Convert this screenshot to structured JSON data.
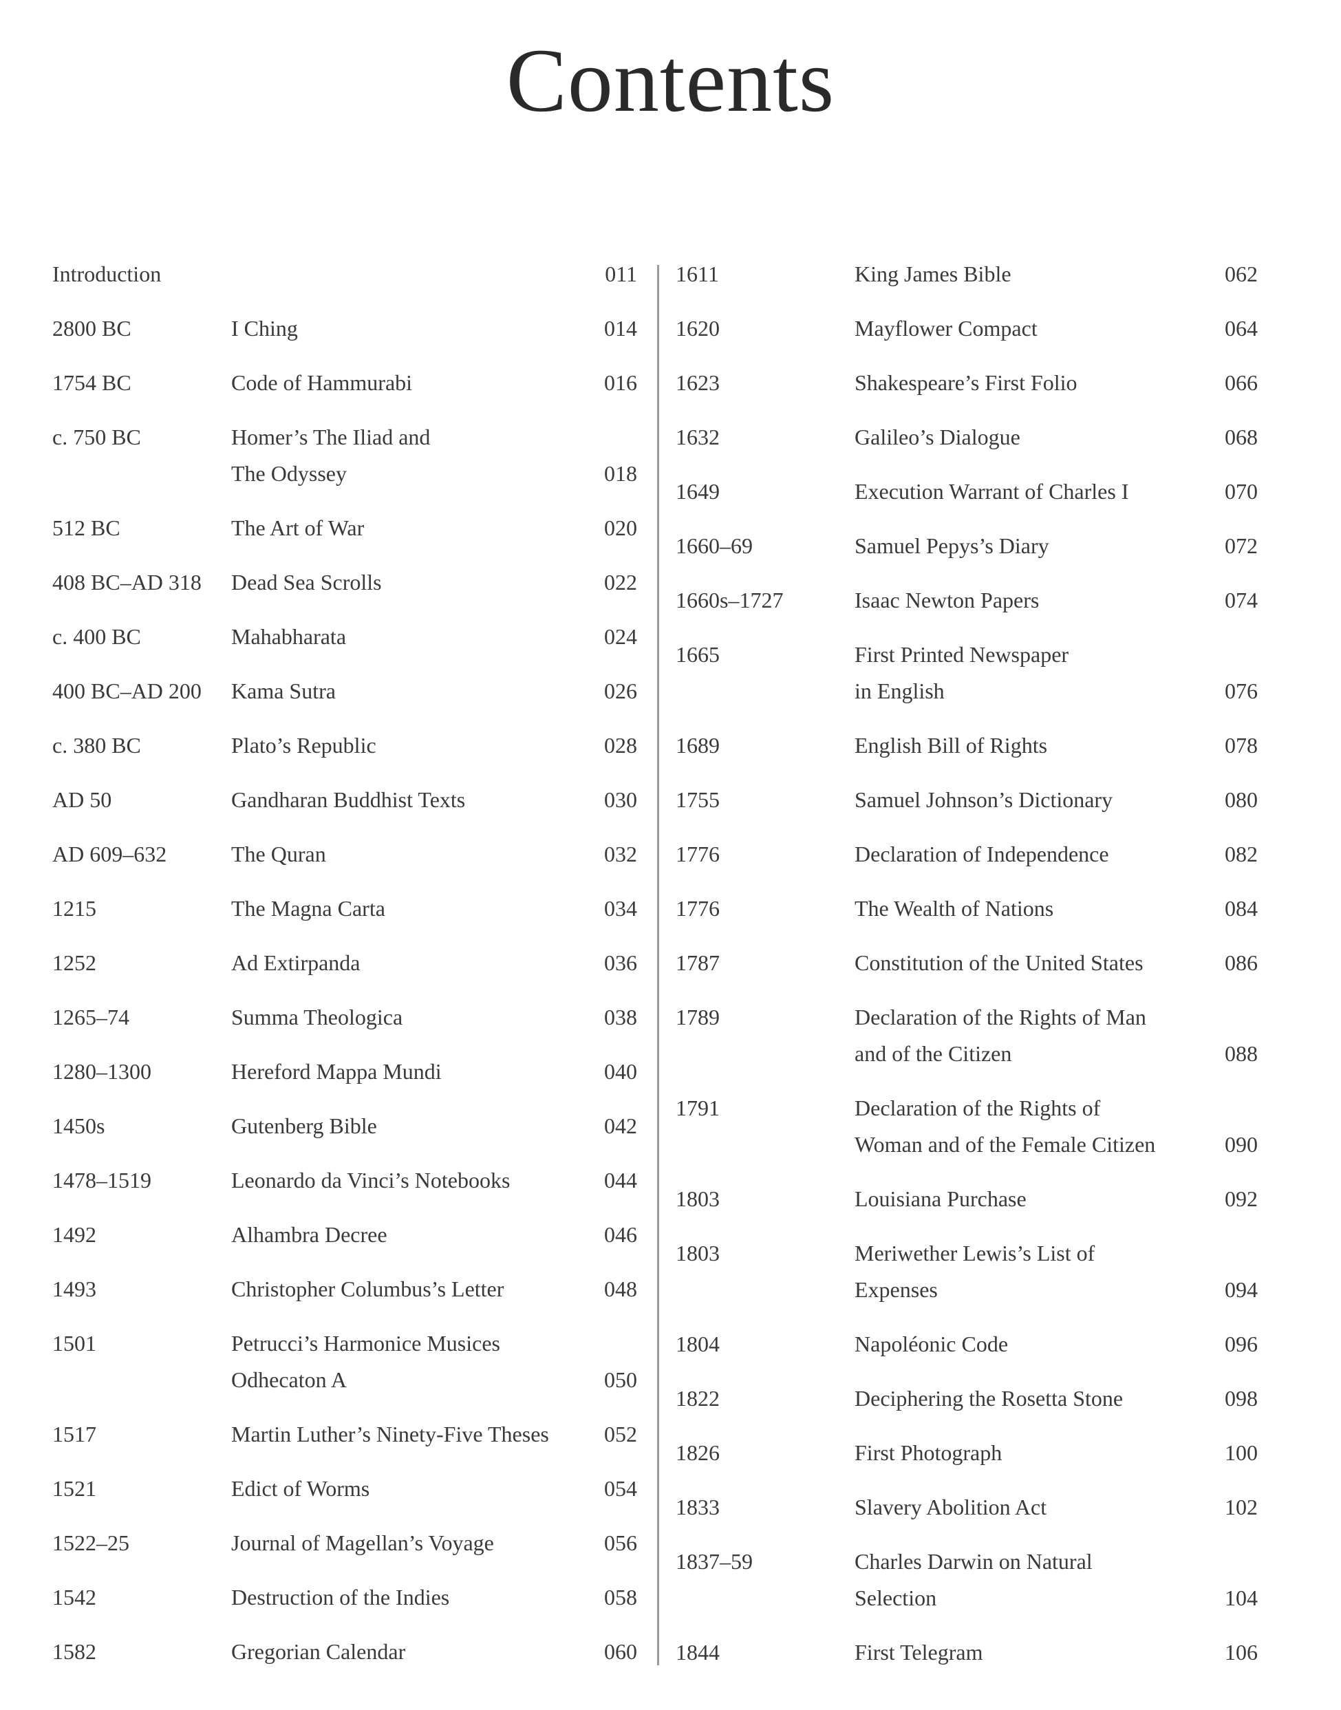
{
  "title": "Contents",
  "left_entries": [
    {
      "date": "Introduction",
      "title": "",
      "page": "011"
    },
    {
      "date": "2800 BC",
      "title": "I Ching",
      "page": "014"
    },
    {
      "date": "1754 BC",
      "title": "Code of Hammurabi",
      "page": "016"
    },
    {
      "date": "c. 750 BC",
      "title": "Homer’s The Iliad and The Odyssey",
      "page": "018",
      "lines": [
        "Homer’s The Iliad and",
        "The Odyssey"
      ]
    },
    {
      "date": "512 BC",
      "title": "The Art of War",
      "page": "020"
    },
    {
      "date": "408 BC–AD 318",
      "title": "Dead Sea Scrolls",
      "page": "022"
    },
    {
      "date": "c. 400 BC",
      "title": "Mahabharata",
      "page": "024"
    },
    {
      "date": "400 BC–AD 200",
      "title": "Kama Sutra",
      "page": "026"
    },
    {
      "date": "c. 380 BC",
      "title": "Plato’s Republic",
      "page": "028"
    },
    {
      "date": "AD 50",
      "title": "Gandharan Buddhist Texts",
      "page": "030"
    },
    {
      "date": "AD 609–632",
      "title": "The Quran",
      "page": "032"
    },
    {
      "date": "1215",
      "title": "The Magna Carta",
      "page": "034"
    },
    {
      "date": "1252",
      "title": "Ad Extirpanda",
      "page": "036"
    },
    {
      "date": "1265–74",
      "title": "Summa Theologica",
      "page": "038"
    },
    {
      "date": "1280–1300",
      "title": "Hereford Mappa Mundi",
      "page": "040"
    },
    {
      "date": "1450s",
      "title": "Gutenberg Bible",
      "page": "042"
    },
    {
      "date": "1478–1519",
      "title": "Leonardo da Vinci’s Notebooks",
      "page": "044"
    },
    {
      "date": "1492",
      "title": "Alhambra Decree",
      "page": "046"
    },
    {
      "date": "1493",
      "title": "Christopher Columbus’s Letter",
      "page": "048"
    },
    {
      "date": "1501",
      "title": "Petrucci’s Harmonice Musices Odhecaton A",
      "page": "050",
      "lines": [
        "Petrucci’s Harmonice Musices",
        "Odhecaton A"
      ]
    },
    {
      "date": "1517",
      "title": "Martin Luther’s Ninety-Five Theses",
      "page": "052"
    },
    {
      "date": "1521",
      "title": "Edict of Worms",
      "page": "054"
    },
    {
      "date": "1522–25",
      "title": "Journal of Magellan’s Voyage",
      "page": "056"
    },
    {
      "date": "1542",
      "title": "Destruction of the Indies",
      "page": "058"
    },
    {
      "date": "1582",
      "title": "Gregorian Calendar",
      "page": "060"
    }
  ],
  "right_entries": [
    {
      "date": "1611",
      "title": "King James Bible",
      "page": "062"
    },
    {
      "date": "1620",
      "title": "Mayflower Compact",
      "page": "064"
    },
    {
      "date": "1623",
      "title": "Shakespeare’s First Folio",
      "page": "066"
    },
    {
      "date": "1632",
      "title": "Galileo’s Dialogue",
      "page": "068"
    },
    {
      "date": "1649",
      "title": "Execution Warrant of Charles I",
      "page": "070"
    },
    {
      "date": "1660–69",
      "title": "Samuel Pepys’s Diary",
      "page": "072"
    },
    {
      "date": "1660s–1727",
      "title": "Isaac Newton Papers",
      "page": "074"
    },
    {
      "date": "1665",
      "title": "First Printed Newspaper in English",
      "page": "076",
      "lines": [
        "First Printed Newspaper",
        "in English"
      ]
    },
    {
      "date": "1689",
      "title": "English Bill of Rights",
      "page": "078"
    },
    {
      "date": "1755",
      "title": "Samuel Johnson’s Dictionary",
      "page": "080"
    },
    {
      "date": "1776",
      "title": "Declaration of Independence",
      "page": "082"
    },
    {
      "date": "1776",
      "title": "The Wealth of Nations",
      "page": "084"
    },
    {
      "date": "1787",
      "title": "Constitution of the United States",
      "page": "086"
    },
    {
      "date": "1789",
      "title": "Declaration of the Rights of Man and of the Citizen",
      "page": "088",
      "lines": [
        "Declaration of the Rights of Man",
        "and of the Citizen"
      ]
    },
    {
      "date": "1791",
      "title": "Declaration of the Rights of Woman and of the Female Citizen",
      "page": "090",
      "lines": [
        "Declaration of the Rights of",
        "Woman and of the Female Citizen"
      ]
    },
    {
      "date": "1803",
      "title": "Louisiana Purchase",
      "page": "092"
    },
    {
      "date": "1803",
      "title": "Meriwether Lewis’s List of Expenses",
      "page": "094",
      "lines": [
        "Meriwether Lewis’s List of",
        "Expenses"
      ]
    },
    {
      "date": "1804",
      "title": "Napoléonic Code",
      "page": "096"
    },
    {
      "date": "1822",
      "title": "Deciphering the Rosetta Stone",
      "page": "098"
    },
    {
      "date": "1826",
      "title": "First Photograph",
      "page": "100"
    },
    {
      "date": "1833",
      "title": "Slavery Abolition Act",
      "page": "102"
    },
    {
      "date": "1837–59",
      "title": "Charles Darwin on Natural Selection",
      "page": "104",
      "lines": [
        "Charles Darwin on Natural",
        "Selection"
      ]
    },
    {
      "date": "1844",
      "title": "First Telegram",
      "page": "106"
    }
  ]
}
